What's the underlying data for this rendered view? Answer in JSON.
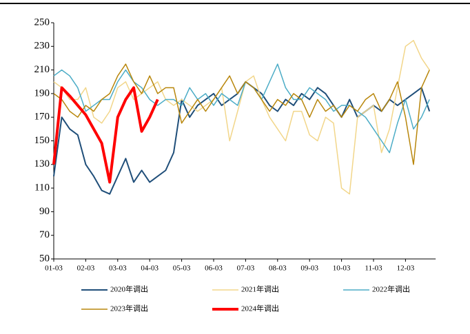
{
  "chart_data": {
    "type": "line",
    "categories": [
      "01-03",
      null,
      null,
      null,
      "02-03",
      null,
      null,
      null,
      "03-03",
      null,
      null,
      null,
      "04-03",
      null,
      null,
      null,
      "05-03",
      null,
      null,
      null,
      "06-03",
      null,
      null,
      null,
      "07-03",
      null,
      null,
      null,
      "08-03",
      null,
      null,
      null,
      "09-03",
      null,
      null,
      null,
      "10-03",
      null,
      null,
      null,
      "11-03",
      null,
      null,
      null,
      "12-03",
      null,
      null,
      null
    ],
    "ylim": [
      50,
      250
    ],
    "yticks": [
      50,
      70,
      90,
      110,
      130,
      150,
      170,
      190,
      210,
      230,
      250
    ],
    "series": [
      {
        "name": "2020年调出",
        "color": "#1f4e79",
        "width": 2,
        "values": [
          120,
          170,
          160,
          155,
          130,
          120,
          108,
          105,
          120,
          135,
          115,
          125,
          115,
          120,
          125,
          140,
          185,
          170,
          180,
          185,
          190,
          180,
          185,
          190,
          200,
          195,
          190,
          180,
          175,
          185,
          180,
          190,
          185,
          195,
          190,
          180,
          170,
          185,
          170,
          175,
          180,
          175,
          185,
          180,
          185,
          190,
          195,
          175
        ]
      },
      {
        "name": "2021年调出",
        "color": "#f2d68a",
        "width": 1.5,
        "values": [
          200,
          195,
          185,
          185,
          195,
          170,
          165,
          175,
          195,
          200,
          185,
          190,
          195,
          200,
          185,
          180,
          185,
          180,
          175,
          180,
          185,
          195,
          150,
          175,
          200,
          205,
          185,
          170,
          160,
          150,
          175,
          175,
          155,
          150,
          170,
          165,
          110,
          105,
          170,
          175,
          180,
          140,
          160,
          195,
          230,
          235,
          220,
          210
        ]
      },
      {
        "name": "2022年调出",
        "color": "#4bacc6",
        "width": 1.5,
        "values": [
          205,
          210,
          205,
          195,
          175,
          180,
          185,
          185,
          200,
          210,
          200,
          195,
          185,
          180,
          185,
          185,
          180,
          195,
          185,
          190,
          180,
          190,
          185,
          180,
          200,
          195,
          185,
          200,
          215,
          195,
          185,
          185,
          195,
          190,
          185,
          175,
          180,
          180,
          175,
          170,
          160,
          150,
          140,
          165,
          185,
          160,
          170,
          185
        ]
      },
      {
        "name": "2023年调出",
        "color": "#b8860b",
        "width": 1.5,
        "values": [
          190,
          185,
          175,
          170,
          180,
          175,
          185,
          190,
          205,
          215,
          200,
          190,
          205,
          190,
          195,
          195,
          165,
          175,
          185,
          175,
          185,
          195,
          205,
          190,
          200,
          195,
          185,
          175,
          185,
          180,
          190,
          185,
          170,
          185,
          175,
          180,
          170,
          180,
          175,
          185,
          190,
          175,
          185,
          200,
          170,
          130,
          195,
          210
        ]
      },
      {
        "name": "2024年调出",
        "color": "#ff0000",
        "width": 4,
        "values": [
          130,
          195,
          188,
          180,
          172,
          160,
          148,
          115,
          170,
          185,
          195,
          158,
          170,
          185,
          null,
          null,
          null,
          null,
          null,
          null,
          null,
          null,
          null,
          null,
          null,
          null,
          null,
          null,
          null,
          null,
          null,
          null,
          null,
          null,
          null,
          null,
          null,
          null,
          null,
          null,
          null,
          null,
          null,
          null,
          null,
          null,
          null,
          null
        ]
      }
    ]
  }
}
